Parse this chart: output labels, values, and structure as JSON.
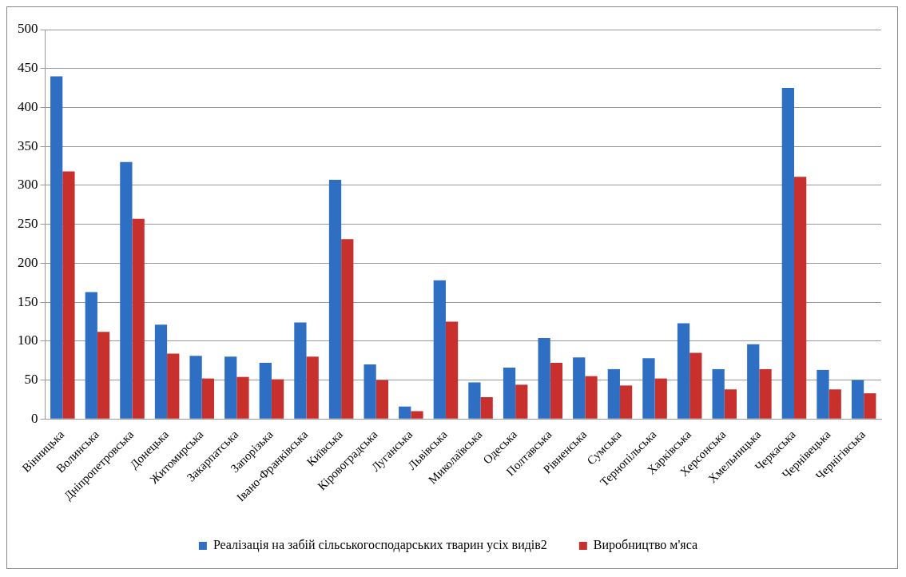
{
  "chart_data": {
    "type": "bar",
    "categories": [
      "Вінницька",
      "Волинська",
      "Дніпропетровська",
      "Донецька",
      "Житомирська",
      "Закарпатська",
      "Запорізька",
      "Івано-Франківська",
      "Київська",
      "Кіровоградська",
      "Луганська",
      "Львівська",
      "Миколаївська",
      "Одеська",
      "Полтавська",
      "Рівненська",
      "Сумська",
      "Тернопільська",
      "Харківська",
      "Херсонська",
      "Хмельницька",
      "Черкаська",
      "Чернівецька",
      "Чернігівська"
    ],
    "series": [
      {
        "name": "Реалізація на забій сільськогосподарських тварин усіх видів2",
        "color": "#2e6fc4",
        "values": [
          440,
          163,
          330,
          121,
          81,
          80,
          72,
          124,
          307,
          70,
          16,
          178,
          47,
          66,
          104,
          79,
          64,
          78,
          123,
          64,
          96,
          425,
          63,
          50
        ]
      },
      {
        "name": "Виробництво м'яса",
        "color": "#c8302e",
        "values": [
          318,
          112,
          257,
          84,
          52,
          54,
          51,
          80,
          231,
          50,
          10,
          125,
          28,
          44,
          72,
          55,
          43,
          52,
          85,
          38,
          64,
          311,
          38,
          33
        ]
      }
    ],
    "ylim": [
      0,
      500
    ],
    "yticks": [
      0,
      50,
      100,
      150,
      200,
      250,
      300,
      350,
      400,
      450,
      500
    ],
    "grid": "y",
    "legend": "bottom"
  }
}
